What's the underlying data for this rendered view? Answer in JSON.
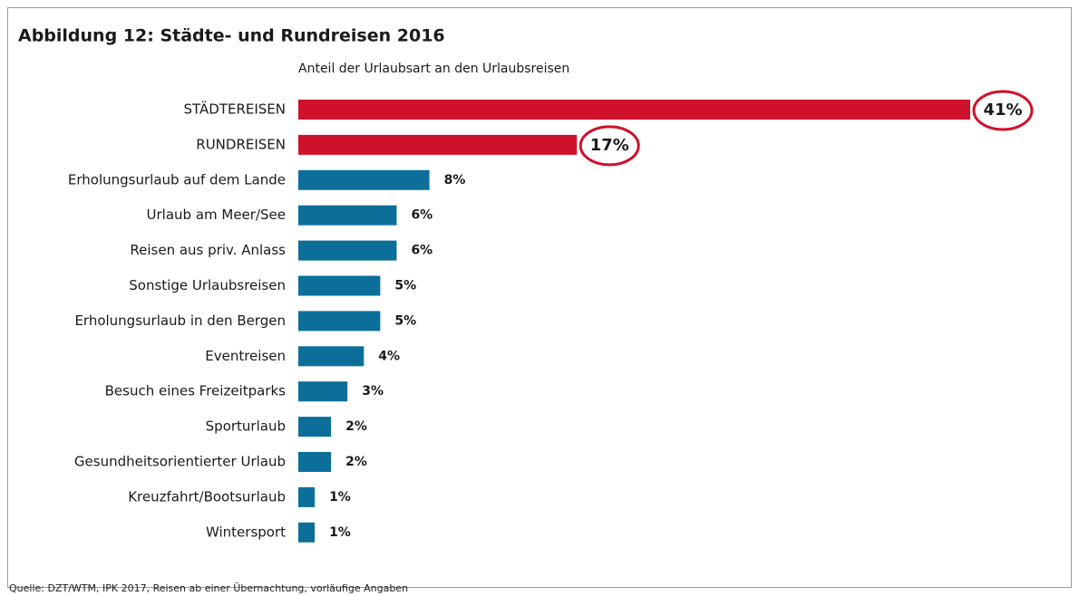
{
  "chart_data": {
    "type": "bar",
    "orientation": "horizontal",
    "title": "Abbildung 12: Städte- und Rundreisen 2016",
    "subtitle": "Anteil der Urlaubsart an den Urlaubsreisen",
    "categories": [
      "STÄDTEREISEN",
      "RUNDREISEN",
      "Erholungsurlaub auf dem Lande",
      "Urlaub am Meer/See",
      "Reisen aus priv. Anlass",
      "Sonstige Urlaubsreisen",
      "Erholungsurlaub in den Bergen",
      "Eventreisen",
      "Besuch eines Freizeitparks",
      "Sporturlaub",
      "Gesundheitsorientierter Urlaub",
      "Kreuzfahrt/Bootsurlaub",
      "Wintersport"
    ],
    "values": [
      41,
      17,
      8,
      6,
      6,
      5,
      5,
      4,
      3,
      2,
      2,
      1,
      1
    ],
    "value_labels": [
      "41%",
      "17%",
      "8%",
      "6%",
      "6%",
      "5%",
      "5%",
      "4%",
      "3%",
      "2%",
      "2%",
      "1%",
      "1%"
    ],
    "colors": [
      "#d0112b",
      "#d0112b",
      "#0b6f9a",
      "#0b6f9a",
      "#0b6f9a",
      "#0b6f9a",
      "#0b6f9a",
      "#0b6f9a",
      "#0b6f9a",
      "#0b6f9a",
      "#0b6f9a",
      "#0b6f9a",
      "#0b6f9a"
    ],
    "highlight_color": "#d0112b",
    "source": "Quelle: DZT/WTM, IPK 2017, Reisen ab einer Übernachtung, vorläufige Angaben"
  }
}
